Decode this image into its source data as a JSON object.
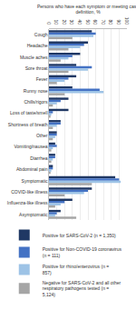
{
  "chart_data": {
    "type": "bar",
    "orientation": "horizontal",
    "xlabel": "Persons who have each symptom or meeting case definition, %",
    "categories": [
      "Cough",
      "Headache",
      "Muscle aches",
      "Sore throat",
      "Fever",
      "Runny nose",
      "Chills/rigors",
      "Loss of taste/smell",
      "Shortness of breath",
      "Other",
      "Vomiting/nausea",
      "Diarrhea",
      "Abdominal pain",
      "Symptomatic",
      "COVID-like illness",
      "Influenza-like illness",
      "Asymptomatic"
    ],
    "series": [
      {
        "name": "Positive for SARS-CoV-2 (n = 1,350)",
        "color": "#203864",
        "values": [
          55,
          50,
          40,
          35,
          35,
          30,
          25,
          25,
          15,
          10,
          8,
          8,
          5,
          85,
          55,
          30,
          15
        ]
      },
      {
        "name": "Positive for Non-COVID-19 coronavirus (n = 111)",
        "color": "#4472c4",
        "values": [
          60,
          45,
          30,
          55,
          25,
          65,
          15,
          5,
          15,
          10,
          10,
          8,
          5,
          90,
          50,
          20,
          10
        ]
      },
      {
        "name": "Positive for rhino/enterovirus (n = 857)",
        "color": "#9dc3e6",
        "values": [
          57,
          40,
          25,
          50,
          20,
          70,
          10,
          3,
          10,
          8,
          5,
          5,
          3,
          92,
          45,
          15,
          8
        ]
      },
      {
        "name": "Negative for SARS-CoV-2 and all other respiratory pathogens tested (n = 5,124)",
        "color": "#a5a5a5",
        "values": [
          30,
          25,
          15,
          25,
          10,
          20,
          5,
          2,
          5,
          5,
          3,
          3,
          2,
          55,
          20,
          8,
          35
        ]
      }
    ],
    "xlim": [
      0,
      100
    ],
    "xticks": [
      0,
      10,
      20,
      30,
      40,
      50,
      60,
      70,
      80,
      90,
      100
    ],
    "grid": true,
    "legend": "bottom"
  }
}
